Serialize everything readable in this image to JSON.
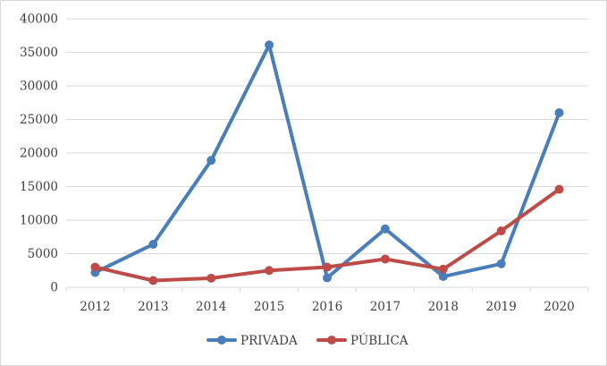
{
  "chart_data": {
    "type": "line",
    "title": "",
    "xlabel": "",
    "ylabel": "",
    "categories": [
      "2012",
      "2013",
      "2014",
      "2015",
      "2016",
      "2017",
      "2018",
      "2019",
      "2020"
    ],
    "ylim": [
      0,
      40000
    ],
    "yticks": [
      0,
      5000,
      10000,
      15000,
      20000,
      25000,
      30000,
      35000,
      40000
    ],
    "grid": true,
    "legend_position": "bottom",
    "series": [
      {
        "name": "PRIVADA",
        "color": "#4a7ebb",
        "values": [
          2200,
          6400,
          18900,
          36100,
          1400,
          8700,
          1600,
          3500,
          26000
        ]
      },
      {
        "name": "PÚBLICA",
        "color": "#be4b48",
        "values": [
          3000,
          1000,
          1350,
          2500,
          3000,
          4200,
          2700,
          8400,
          14600
        ]
      }
    ]
  }
}
